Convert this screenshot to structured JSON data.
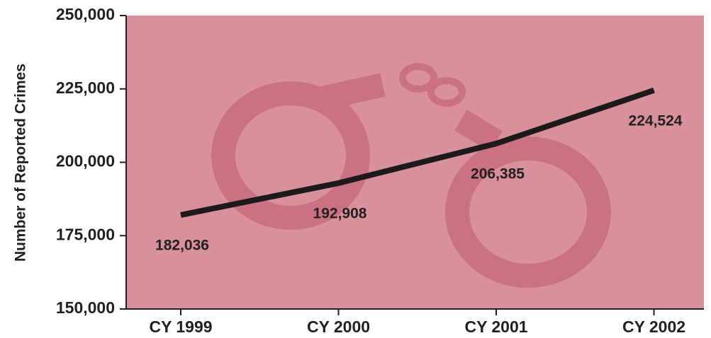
{
  "chart_data": {
    "type": "line",
    "y_label": "Number of Reported Crimes",
    "categories": [
      "CY 1999",
      "CY 2000",
      "CY 2001",
      "CY 2002"
    ],
    "series": [
      {
        "color": "#1e1a1b",
        "values": [
          182036,
          192908,
          206385,
          224524
        ],
        "value_labels": [
          "182,036",
          "192,908",
          "206,385",
          "224,524"
        ]
      }
    ],
    "ylim": [
      150000,
      250000
    ],
    "yticks": [
      {
        "value": 150000,
        "label": "150,000"
      },
      {
        "value": 175000,
        "label": "175,000"
      },
      {
        "value": 200000,
        "label": "200,000"
      },
      {
        "value": 225000,
        "label": "225,000"
      },
      {
        "value": 250000,
        "label": "250,000"
      }
    ],
    "background": "#d8909d"
  }
}
